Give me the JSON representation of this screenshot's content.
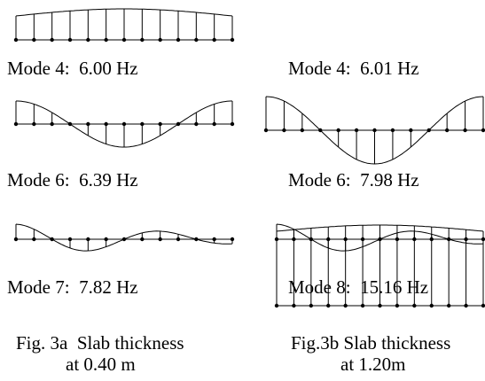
{
  "left": {
    "modes": [
      "Mode 4:  6.00 Hz",
      "Mode 6:  6.39 Hz",
      "Mode 7:  7.82 Hz"
    ],
    "caption": [
      "Fig. 3a  Slab thickness",
      "at 0.40 m"
    ]
  },
  "right": {
    "modes": [
      "Mode 4:  6.01 Hz",
      "Mode 6:  7.98 Hz",
      "Mode 8:  15.16 Hz"
    ],
    "caption": [
      "Fig.3b Slab thickness",
      "at 1.20m"
    ]
  }
}
